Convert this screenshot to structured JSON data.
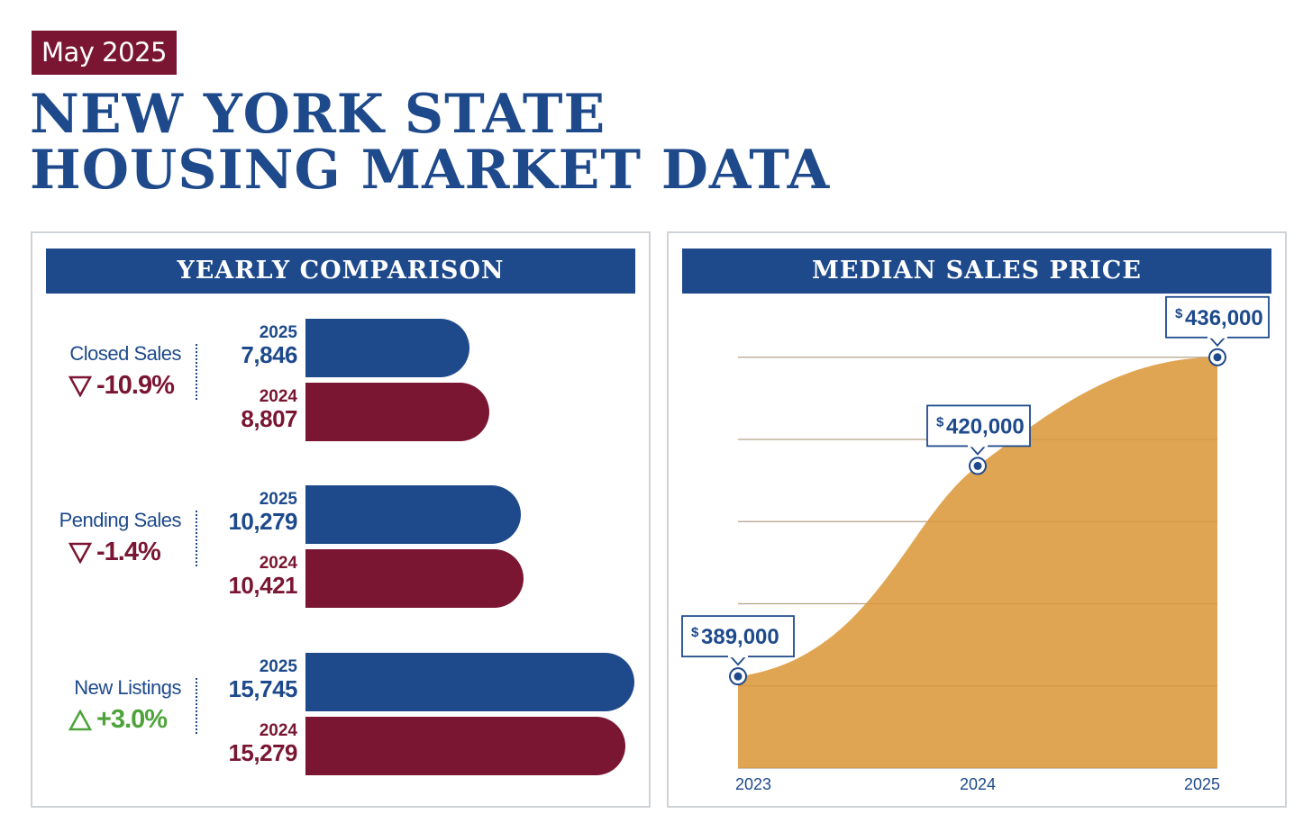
{
  "header": {
    "date": "May 2025",
    "title_line1": "NEW YORK STATE",
    "title_line2": "HOUSING MARKET DATA"
  },
  "yearly": {
    "title": "YEARLY COMPARISON",
    "max_value": 16500,
    "metrics": [
      {
        "name": "Closed Sales",
        "change": "-10.9%",
        "direction": "down",
        "current": {
          "year": "2025",
          "label": "7,846",
          "value": 7846
        },
        "previous": {
          "year": "2024",
          "label": "8,807",
          "value": 8807
        }
      },
      {
        "name": "Pending Sales",
        "change": "-1.4%",
        "direction": "down",
        "current": {
          "year": "2025",
          "label": "10,279",
          "value": 10279
        },
        "previous": {
          "year": "2024",
          "label": "10,421",
          "value": 10421
        }
      },
      {
        "name": "New Listings",
        "change": "+3.0%",
        "direction": "up",
        "current": {
          "year": "2025",
          "label": "15,745",
          "value": 15745
        },
        "previous": {
          "year": "2024",
          "label": "15,279",
          "value": 15279
        }
      }
    ]
  },
  "median": {
    "title": "MEDIAN SALES PRICE",
    "points": [
      {
        "year": "2023",
        "value": 389000,
        "currency": "$",
        "label": "389,000"
      },
      {
        "year": "2024",
        "value": 420000,
        "currency": "$",
        "label": "420,000"
      },
      {
        "year": "2025",
        "value": 436000,
        "currency": "$",
        "label": "436,000"
      }
    ]
  },
  "chart_data": [
    {
      "type": "bar",
      "title": "YEARLY COMPARISON",
      "categories": [
        "Closed Sales",
        "Pending Sales",
        "New Listings"
      ],
      "series": [
        {
          "name": "2025",
          "values": [
            7846,
            10279,
            15745
          ]
        },
        {
          "name": "2024",
          "values": [
            8807,
            10421,
            15279
          ]
        }
      ],
      "change": [
        "-10.9%",
        "-1.4%",
        "+3.0%"
      ]
    },
    {
      "type": "area",
      "title": "MEDIAN SALES PRICE",
      "x": [
        "2023",
        "2024",
        "2025"
      ],
      "values": [
        389000,
        420000,
        436000
      ],
      "grid": true
    }
  ],
  "colors": {
    "blue": "#1e4a8c",
    "maroon": "#7a1631",
    "green": "#4da33a",
    "area": "#e0a552"
  }
}
